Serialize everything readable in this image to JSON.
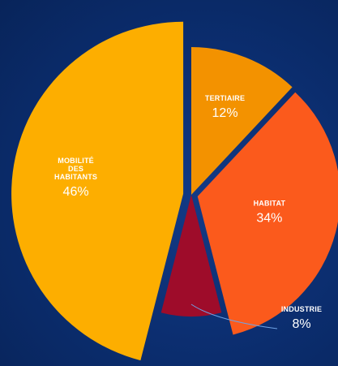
{
  "chart_data": {
    "type": "pie",
    "title": "",
    "slices": [
      {
        "label": "TERTIAIRE",
        "label_lines": [
          "TERTIAIRE"
        ],
        "value": 12,
        "value_label": "12%",
        "color": "#f39200"
      },
      {
        "label": "HABITAT",
        "label_lines": [
          "HABITAT"
        ],
        "value": 34,
        "value_label": "34%",
        "color": "#fb5a1c"
      },
      {
        "label": "INDUSTRIE",
        "label_lines": [
          "INDUSTRIE"
        ],
        "value": 8,
        "value_label": "8%",
        "color": "#9e0c2a"
      },
      {
        "label": "MOBILITÉ DES HABITANTS",
        "label_lines": [
          "MOBILITÉ",
          "DES",
          "HABITANTS"
        ],
        "value": 46,
        "value_label": "46%",
        "color": "#fdae00"
      }
    ],
    "background_color": "#0b2d6e"
  }
}
